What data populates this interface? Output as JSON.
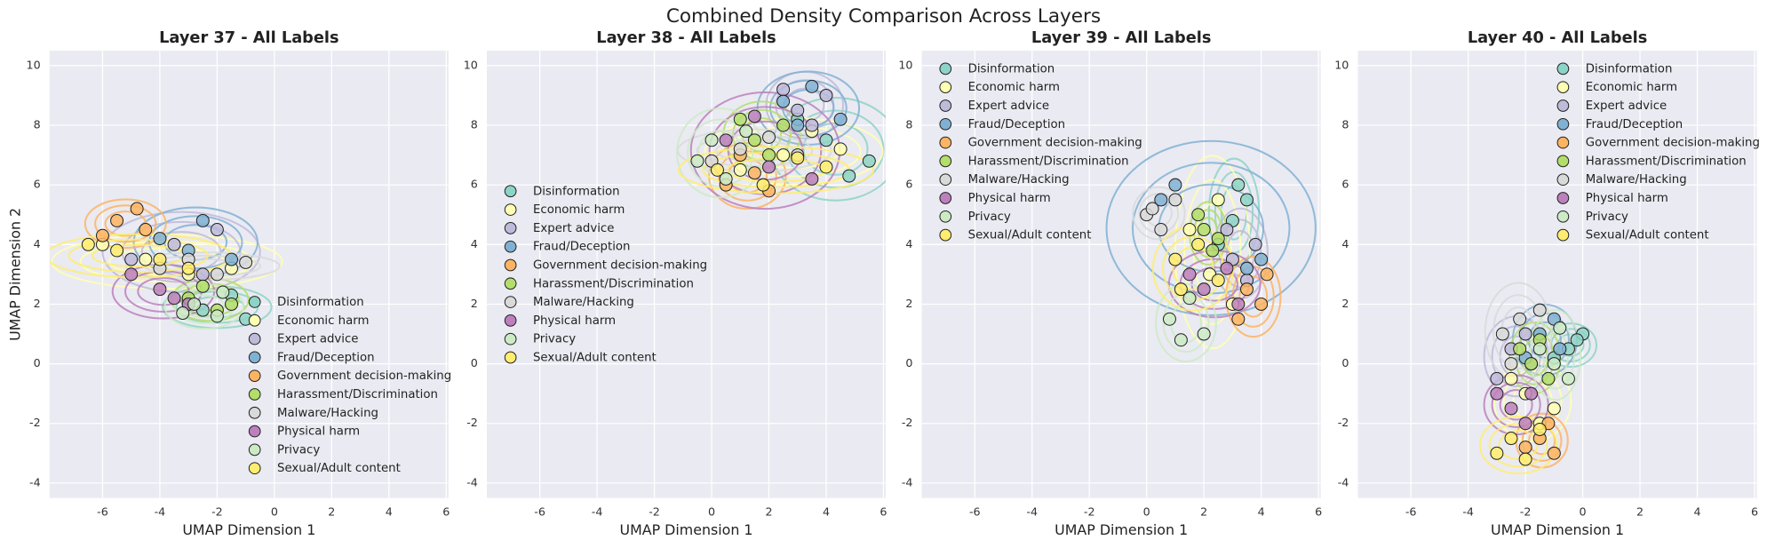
{
  "title": "Combined Density Comparison Across Layers",
  "chart_data": [
    {
      "type": "scatter",
      "title": "Layer 37 - All Labels",
      "xlabel": "UMAP Dimension 1",
      "ylabel": "UMAP Dimension 2",
      "xlim": [
        -7.85,
        6.08
      ],
      "ylim": [
        -4.5,
        10.5
      ],
      "xticks": [
        -6,
        -4,
        -2,
        0,
        2,
        4,
        6
      ],
      "yticks": [
        -4,
        -2,
        0,
        2,
        4,
        6,
        8,
        10
      ],
      "grid": true,
      "legend": "lower right",
      "series": [
        {
          "name": "Disinformation",
          "color": "#8dd3c7",
          "x": [
            -2.5,
            -1.5,
            -3,
            -1
          ],
          "y": [
            1.8,
            2.3,
            2.0,
            1.5
          ]
        },
        {
          "name": "Economic harm",
          "color": "#ffffb3",
          "x": [
            -6,
            -4.5,
            -3,
            -1.5
          ],
          "y": [
            4,
            3.5,
            3,
            3.2
          ]
        },
        {
          "name": "Expert advice",
          "color": "#bebada",
          "x": [
            -5,
            -3.5,
            -2,
            -2.5
          ],
          "y": [
            3.5,
            4,
            4.5,
            3
          ]
        },
        {
          "name": "Fraud/Deception",
          "color": "#80b1d3",
          "x": [
            -4,
            -2.5,
            -1.5,
            -3
          ],
          "y": [
            4.2,
            4.8,
            3.5,
            3.8
          ]
        },
        {
          "name": "Government decision-making",
          "color": "#fdb462",
          "x": [
            -5.5,
            -4.8,
            -6,
            -4.5
          ],
          "y": [
            4.8,
            5.2,
            4.3,
            4.5
          ]
        },
        {
          "name": "Harassment/Discrimination",
          "color": "#b3de69",
          "x": [
            -3,
            -2,
            -2.5,
            -1.5
          ],
          "y": [
            2.2,
            1.8,
            2.6,
            2.0
          ]
        },
        {
          "name": "Malware/Hacking",
          "color": "#d9d9d9",
          "x": [
            -4,
            -3,
            -2,
            -1
          ],
          "y": [
            3.2,
            3.5,
            3.0,
            3.4
          ]
        },
        {
          "name": "Physical harm",
          "color": "#bc80bd",
          "x": [
            -5,
            -4,
            -3.5,
            -3
          ],
          "y": [
            3,
            2.5,
            2.2,
            2.0
          ]
        },
        {
          "name": "Privacy",
          "color": "#ccebc5",
          "x": [
            -2.8,
            -2,
            -1.8,
            -3.2
          ],
          "y": [
            2,
            1.6,
            2.4,
            1.7
          ]
        },
        {
          "name": "Sexual/Adult content",
          "color": "#ffed6f",
          "x": [
            -6.5,
            -5.5,
            -4,
            -3
          ],
          "y": [
            4,
            3.8,
            3.5,
            3.2
          ]
        }
      ]
    },
    {
      "type": "scatter",
      "title": "Layer 38 - All Labels",
      "xlabel": "UMAP Dimension 1",
      "xlim": [
        -7.85,
        6.08
      ],
      "ylim": [
        -4.5,
        10.5
      ],
      "xticks": [
        -6,
        -4,
        -2,
        0,
        2,
        4,
        6
      ],
      "yticks": [
        -4,
        -2,
        0,
        2,
        4,
        6,
        8,
        10
      ],
      "grid": true,
      "legend": "center left",
      "series": [
        {
          "name": "Disinformation",
          "color": "#8dd3c7",
          "x": [
            4.8,
            5.5,
            4,
            3
          ],
          "y": [
            6.3,
            6.8,
            7.5,
            8.2
          ]
        },
        {
          "name": "Economic harm",
          "color": "#ffffb3",
          "x": [
            1,
            2.5,
            3.5,
            4.5
          ],
          "y": [
            6.5,
            7,
            7.8,
            7.2
          ]
        },
        {
          "name": "Expert advice",
          "color": "#bebada",
          "x": [
            3,
            4,
            3.5,
            2.5
          ],
          "y": [
            8.5,
            9,
            8,
            9.2
          ]
        },
        {
          "name": "Fraud/Deception",
          "color": "#80b1d3",
          "x": [
            2.5,
            3.5,
            4.5,
            3
          ],
          "y": [
            8.8,
            9.3,
            8.2,
            8
          ]
        },
        {
          "name": "Government decision-making",
          "color": "#fdb462",
          "x": [
            0.5,
            1.5,
            2,
            1
          ],
          "y": [
            6,
            6.4,
            5.8,
            7
          ]
        },
        {
          "name": "Harassment/Discrimination",
          "color": "#b3de69",
          "x": [
            1.5,
            2.5,
            1,
            2
          ],
          "y": [
            7.5,
            8,
            8.2,
            7
          ]
        },
        {
          "name": "Malware/Hacking",
          "color": "#d9d9d9",
          "x": [
            0,
            1,
            2,
            3
          ],
          "y": [
            6.8,
            7.2,
            7.6,
            7
          ]
        },
        {
          "name": "Physical harm",
          "color": "#bc80bd",
          "x": [
            0.5,
            1.5,
            2,
            3.5
          ],
          "y": [
            7.5,
            8.3,
            6.6,
            6.2
          ]
        },
        {
          "name": "Privacy",
          "color": "#ccebc5",
          "x": [
            -0.5,
            0.5,
            1.2,
            0
          ],
          "y": [
            6.8,
            6.2,
            7.8,
            7.5
          ]
        },
        {
          "name": "Sexual/Adult content",
          "color": "#ffed6f",
          "x": [
            0.2,
            1.8,
            3,
            4
          ],
          "y": [
            6.5,
            6,
            6.9,
            6.6
          ]
        }
      ]
    },
    {
      "type": "scatter",
      "title": "Layer 39 - All Labels",
      "xlabel": "UMAP Dimension 1",
      "xlim": [
        -7.85,
        6.08
      ],
      "ylim": [
        -4.5,
        10.5
      ],
      "xticks": [
        -6,
        -4,
        -2,
        0,
        2,
        4,
        6
      ],
      "yticks": [
        -4,
        -2,
        0,
        2,
        4,
        6,
        8,
        10
      ],
      "grid": true,
      "legend": "upper left",
      "series": [
        {
          "name": "Disinformation",
          "color": "#8dd3c7",
          "x": [
            3.2,
            3.5,
            3,
            2.5
          ],
          "y": [
            6,
            5.5,
            4.8,
            4
          ]
        },
        {
          "name": "Economic harm",
          "color": "#ffffb3",
          "x": [
            1.5,
            2.2,
            3,
            2.5
          ],
          "y": [
            4.5,
            3,
            2,
            5.5
          ]
        },
        {
          "name": "Expert advice",
          "color": "#bebada",
          "x": [
            3,
            3.8,
            3.5,
            2.8
          ],
          "y": [
            3.5,
            4,
            2.8,
            4.5
          ]
        },
        {
          "name": "Fraud/Deception",
          "color": "#80b1d3",
          "x": [
            0.5,
            1,
            3.5,
            4
          ],
          "y": [
            5.5,
            6,
            3.2,
            3.5
          ]
        },
        {
          "name": "Government decision-making",
          "color": "#fdb462",
          "x": [
            3.5,
            4,
            3.2,
            4.2
          ],
          "y": [
            2.5,
            2,
            1.5,
            3
          ]
        },
        {
          "name": "Harassment/Discrimination",
          "color": "#b3de69",
          "x": [
            2,
            2.3,
            1.8,
            2.5
          ],
          "y": [
            4.5,
            3.8,
            5,
            4.2
          ]
        },
        {
          "name": "Malware/Hacking",
          "color": "#d9d9d9",
          "x": [
            0,
            0.5,
            1,
            0.2
          ],
          "y": [
            5,
            4.5,
            5.5,
            5.2
          ]
        },
        {
          "name": "Physical harm",
          "color": "#bc80bd",
          "x": [
            2,
            2.8,
            3.2,
            1.5
          ],
          "y": [
            2.5,
            3.2,
            2,
            3
          ]
        },
        {
          "name": "Privacy",
          "color": "#ccebc5",
          "x": [
            0.8,
            1.2,
            1.5,
            2
          ],
          "y": [
            1.5,
            0.8,
            2.2,
            1
          ]
        },
        {
          "name": "Sexual/Adult content",
          "color": "#ffed6f",
          "x": [
            1,
            1.8,
            2.5,
            1.2
          ],
          "y": [
            3.5,
            4,
            2.8,
            2.5
          ]
        }
      ]
    },
    {
      "type": "scatter",
      "title": "Layer 40 - All Labels",
      "xlabel": "UMAP Dimension 1",
      "xlim": [
        -7.85,
        6.08
      ],
      "ylim": [
        -4.5,
        10.5
      ],
      "xticks": [
        -6,
        -4,
        -2,
        0,
        2,
        4,
        6
      ],
      "yticks": [
        -4,
        -2,
        0,
        2,
        4,
        6,
        8,
        10
      ],
      "grid": true,
      "legend": "upper right",
      "series": [
        {
          "name": "Disinformation",
          "color": "#8dd3c7",
          "x": [
            -0.5,
            0,
            -1,
            -0.2
          ],
          "y": [
            0.5,
            1,
            0.2,
            0.8
          ]
        },
        {
          "name": "Economic harm",
          "color": "#ffffb3",
          "x": [
            -2,
            -1.5,
            -2.5,
            -1
          ],
          "y": [
            -1,
            -2,
            -0.5,
            -1.5
          ]
        },
        {
          "name": "Expert advice",
          "color": "#bebada",
          "x": [
            -2.5,
            -2,
            -1.8,
            -3
          ],
          "y": [
            0.5,
            1,
            0,
            -0.5
          ]
        },
        {
          "name": "Fraud/Deception",
          "color": "#80b1d3",
          "x": [
            -1.5,
            -1,
            -0.8,
            -2
          ],
          "y": [
            1,
            1.5,
            0.5,
            0.2
          ]
        },
        {
          "name": "Government decision-making",
          "color": "#fdb462",
          "x": [
            -1.5,
            -1,
            -2,
            -1.2
          ],
          "y": [
            -2.5,
            -3,
            -2.8,
            -2
          ]
        },
        {
          "name": "Harassment/Discrimination",
          "color": "#b3de69",
          "x": [
            -1.8,
            -1.2,
            -2.2,
            -1.5
          ],
          "y": [
            0,
            -0.5,
            0.5,
            0.8
          ]
        },
        {
          "name": "Malware/Hacking",
          "color": "#d9d9d9",
          "x": [
            -2.8,
            -2.2,
            -1.5,
            -2.5
          ],
          "y": [
            1,
            1.5,
            1.8,
            0
          ]
        },
        {
          "name": "Physical harm",
          "color": "#bc80bd",
          "x": [
            -2.5,
            -2,
            -3,
            -1.8
          ],
          "y": [
            -1.5,
            -2,
            -1,
            -1
          ]
        },
        {
          "name": "Privacy",
          "color": "#ccebc5",
          "x": [
            -1,
            -0.5,
            -1.5,
            -0.8
          ],
          "y": [
            0,
            -0.5,
            0.5,
            1.2
          ]
        },
        {
          "name": "Sexual/Adult content",
          "color": "#ffed6f",
          "x": [
            -3,
            -2.5,
            -2,
            -1.5
          ],
          "y": [
            -3,
            -2.5,
            -3.2,
            -2.2
          ]
        }
      ]
    }
  ]
}
